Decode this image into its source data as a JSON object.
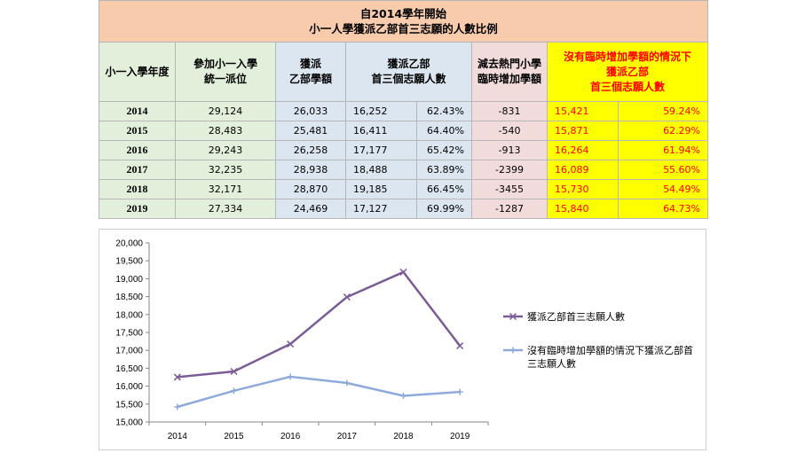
{
  "table": {
    "title_line1": "自2014學年開始",
    "title_line2": "小一人學獲派乙部首三志願的人數比例",
    "headers": {
      "year": "小一入學年度",
      "participants_l1": "參加小一入學",
      "participants_l2": "統一派位",
      "quota_l1": "獲派",
      "quota_l2": "乙部學額",
      "top3_l1": "獲派乙部",
      "top3_l2": "首三個志願人數",
      "deduct_l1": "減去熱門小學",
      "deduct_l2": "臨時增加學額",
      "noextra_l1": "沒有臨時增加學額的情況下",
      "noextra_l2": "獲派乙部",
      "noextra_l3": "首三個志願人數"
    },
    "rows": [
      {
        "year": "2014",
        "participants": "29,124",
        "quota": "26,033",
        "top3": "16,252",
        "top3_pct": "62.43%",
        "deduct": "-831",
        "noextra": "15,421",
        "noextra_pct": "59.24%"
      },
      {
        "year": "2015",
        "participants": "28,483",
        "quota": "25,481",
        "top3": "16,411",
        "top3_pct": "64.40%",
        "deduct": "-540",
        "noextra": "15,871",
        "noextra_pct": "62.29%"
      },
      {
        "year": "2016",
        "participants": "29,243",
        "quota": "26,258",
        "top3": "17,177",
        "top3_pct": "65.42%",
        "deduct": "-913",
        "noextra": "16,264",
        "noextra_pct": "61.94%"
      },
      {
        "year": "2017",
        "participants": "32,235",
        "quota": "28,938",
        "top3": "18,488",
        "top3_pct": "63.89%",
        "deduct": "-2399",
        "noextra": "16,089",
        "noextra_pct": "55.60%"
      },
      {
        "year": "2018",
        "participants": "32,171",
        "quota": "28,870",
        "top3": "19,185",
        "top3_pct": "66.45%",
        "deduct": "-3455",
        "noextra": "15,730",
        "noextra_pct": "54.49%"
      },
      {
        "year": "2019",
        "participants": "27,334",
        "quota": "24,469",
        "top3": "17,127",
        "top3_pct": "69.99%",
        "deduct": "-1287",
        "noextra": "15,840",
        "noextra_pct": "64.73%"
      }
    ]
  },
  "chart_data": {
    "type": "line",
    "categories": [
      "2014",
      "2015",
      "2016",
      "2017",
      "2018",
      "2019"
    ],
    "ylim": [
      15000,
      20000
    ],
    "yticks": [
      "15,000",
      "15,500",
      "16,000",
      "16,500",
      "17,000",
      "17,500",
      "18,000",
      "18,500",
      "19,000",
      "19,500",
      "20,000"
    ],
    "ytick_values": [
      15000,
      15500,
      16000,
      16500,
      17000,
      17500,
      18000,
      18500,
      19000,
      19500,
      20000
    ],
    "grid": false,
    "legend_position": "right",
    "series": [
      {
        "name": "獲派乙部首三志願人數",
        "color": "#7a5c96",
        "marker": "x",
        "values": [
          16252,
          16411,
          17177,
          18488,
          19185,
          17127
        ]
      },
      {
        "name": "沒有臨時增加學額的情況下獲派乙部首三志願人數",
        "name_l1": "沒有臨時增加學額的情況下獲派乙部首",
        "name_l2": "三志願人數",
        "color": "#8eaadb",
        "marker": "plus",
        "values": [
          15421,
          15871,
          16264,
          16089,
          15730,
          15840
        ]
      }
    ]
  }
}
